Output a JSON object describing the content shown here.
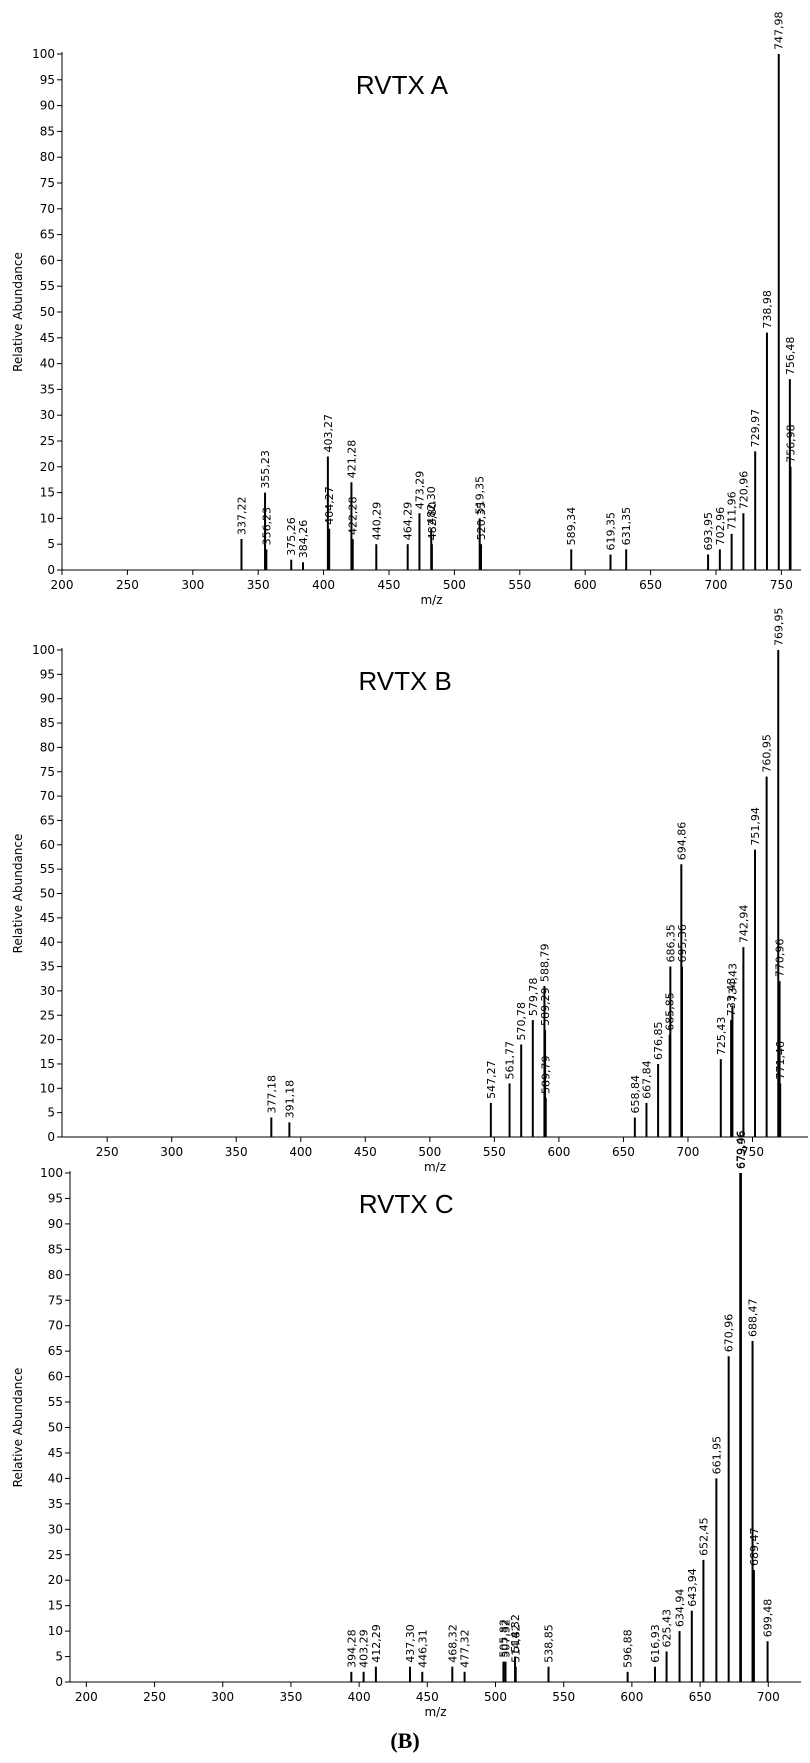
{
  "chart_data": [
    {
      "type": "spectrum",
      "title": "RVTX A",
      "x_label": "m/z",
      "y_label": "Relative Abundance",
      "color": "#000000",
      "xlim": [
        200,
        765
      ],
      "ylim": [
        0,
        100
      ],
      "xticks": [
        200,
        250,
        300,
        350,
        400,
        450,
        500,
        550,
        600,
        650,
        700,
        750
      ],
      "yticks": [
        0,
        5,
        10,
        15,
        20,
        25,
        30,
        35,
        40,
        45,
        50,
        55,
        60,
        65,
        70,
        75,
        80,
        85,
        90,
        95,
        100
      ],
      "x": [
        {
          "value": 337.22,
          "label": "337,22"
        },
        {
          "value": 355.23,
          "label": "355,23"
        },
        {
          "value": 356.23,
          "label": "356,23"
        },
        {
          "value": 375.26,
          "label": "375,26"
        },
        {
          "value": 384.26,
          "label": "384,26"
        },
        {
          "value": 403.27,
          "label": "403,27"
        },
        {
          "value": 404.27,
          "label": "404,27"
        },
        {
          "value": 421.28,
          "label": "421,28"
        },
        {
          "value": 422.28,
          "label": "422,28"
        },
        {
          "value": 440.29,
          "label": "440,29"
        },
        {
          "value": 464.29,
          "label": "464,29"
        },
        {
          "value": 473.29,
          "label": "473,29"
        },
        {
          "value": 482.3,
          "label": "482,30"
        },
        {
          "value": 482.8,
          "label": "482,80"
        },
        {
          "value": 519.35,
          "label": "519,35"
        },
        {
          "value": 520.35,
          "label": "520,35"
        },
        {
          "value": 589.34,
          "label": "589,34"
        },
        {
          "value": 619.35,
          "label": "619,35"
        },
        {
          "value": 631.35,
          "label": "631,35"
        },
        {
          "value": 693.95,
          "label": "693,95"
        },
        {
          "value": 702.96,
          "label": "702,96"
        },
        {
          "value": 711.96,
          "label": "711,96"
        },
        {
          "value": 720.96,
          "label": "720,96"
        },
        {
          "value": 729.97,
          "label": "729,97"
        },
        {
          "value": 738.98,
          "label": "738,98"
        },
        {
          "value": 747.98,
          "label": "747,98"
        },
        {
          "value": 756.48,
          "label": "756,48"
        },
        {
          "value": 756.98,
          "label": "756,98"
        }
      ],
      "values": [
        6,
        15,
        4,
        2,
        1.5,
        22,
        8,
        17,
        6,
        5,
        5,
        11,
        8,
        5,
        10,
        5,
        4,
        3,
        4,
        3,
        4,
        7,
        11,
        23,
        46,
        100,
        37,
        20
      ]
    },
    {
      "type": "spectrum",
      "title": "RVTX B",
      "x_label": "m/z",
      "y_label": "Relative Abundance",
      "color": "#000000",
      "xlim": [
        215,
        793
      ],
      "ylim": [
        0,
        100
      ],
      "xticks": [
        250,
        300,
        350,
        400,
        450,
        500,
        550,
        600,
        650,
        700,
        750
      ],
      "yticks": [
        0,
        5,
        10,
        15,
        20,
        25,
        30,
        35,
        40,
        45,
        50,
        55,
        60,
        65,
        70,
        75,
        80,
        85,
        90,
        95,
        100
      ],
      "x": [
        {
          "value": 377.18,
          "label": "377,18"
        },
        {
          "value": 391.18,
          "label": "391,18"
        },
        {
          "value": 547.27,
          "label": "547,27"
        },
        {
          "value": 561.77,
          "label": "561,77"
        },
        {
          "value": 570.78,
          "label": "570,78"
        },
        {
          "value": 579.78,
          "label": "579,78"
        },
        {
          "value": 588.79,
          "label": "588,79"
        },
        {
          "value": 589.29,
          "label": "589,29"
        },
        {
          "value": 589.79,
          "label": "589,79"
        },
        {
          "value": 658.84,
          "label": "658,84"
        },
        {
          "value": 667.84,
          "label": "667,84"
        },
        {
          "value": 676.85,
          "label": "676,85"
        },
        {
          "value": 685.85,
          "label": "685,85"
        },
        {
          "value": 686.35,
          "label": "686,35"
        },
        {
          "value": 694.86,
          "label": "694,86"
        },
        {
          "value": 695.36,
          "label": "695,36"
        },
        {
          "value": 725.43,
          "label": "725,43"
        },
        {
          "value": 733.43,
          "label": "733,43"
        },
        {
          "value": 734.43,
          "label": "734,43"
        },
        {
          "value": 742.94,
          "label": "742,94"
        },
        {
          "value": 751.94,
          "label": "751,94"
        },
        {
          "value": 760.95,
          "label": "760,95"
        },
        {
          "value": 769.95,
          "label": "769,95"
        },
        {
          "value": 770.96,
          "label": "770,96"
        },
        {
          "value": 771.46,
          "label": "771,46"
        }
      ],
      "values": [
        4,
        3,
        7,
        11,
        19,
        24,
        31,
        22,
        8,
        4,
        7,
        15,
        21,
        35,
        56,
        35,
        16,
        24,
        27,
        39,
        59,
        74,
        100,
        32,
        11
      ]
    },
    {
      "type": "spectrum",
      "title": "RVTX C",
      "x_label": "m/z",
      "y_label": "Relative Abundance",
      "color": "#000000",
      "xlim": [
        188,
        724
      ],
      "ylim": [
        0,
        100
      ],
      "xticks": [
        200,
        250,
        300,
        350,
        400,
        450,
        500,
        550,
        600,
        650,
        700
      ],
      "yticks": [
        0,
        5,
        10,
        15,
        20,
        25,
        30,
        35,
        40,
        45,
        50,
        55,
        60,
        65,
        70,
        75,
        80,
        85,
        90,
        95,
        100
      ],
      "x": [
        {
          "value": 394.28,
          "label": "394,28"
        },
        {
          "value": 403.29,
          "label": "403,29"
        },
        {
          "value": 412.29,
          "label": "412,29"
        },
        {
          "value": 437.3,
          "label": "437,30"
        },
        {
          "value": 446.31,
          "label": "446,31"
        },
        {
          "value": 468.32,
          "label": "468,32"
        },
        {
          "value": 477.32,
          "label": "477,32"
        },
        {
          "value": 505.82,
          "label": "505,82"
        },
        {
          "value": 507.32,
          "label": "507,32"
        },
        {
          "value": 514.32,
          "label": "514,32"
        },
        {
          "value": 514.82,
          "label": "514,82"
        },
        {
          "value": 538.85,
          "label": "538,85"
        },
        {
          "value": 596.88,
          "label": "596,88"
        },
        {
          "value": 616.93,
          "label": "616,93"
        },
        {
          "value": 625.43,
          "label": "625,43"
        },
        {
          "value": 634.94,
          "label": "634,94"
        },
        {
          "value": 643.94,
          "label": "643,94"
        },
        {
          "value": 652.45,
          "label": "652,45"
        },
        {
          "value": 661.95,
          "label": "661,95"
        },
        {
          "value": 670.96,
          "label": "670,96"
        },
        {
          "value": 679.46,
          "label": "679,46"
        },
        {
          "value": 679.96,
          "label": "679,96"
        },
        {
          "value": 688.47,
          "label": "688,47"
        },
        {
          "value": 689.47,
          "label": "689,47"
        },
        {
          "value": 699.48,
          "label": "699,48"
        }
      ],
      "values": [
        2,
        2,
        3,
        3,
        2,
        3,
        2,
        4,
        4,
        5,
        3,
        3,
        2,
        3,
        6,
        10,
        14,
        24,
        40,
        64,
        100,
        100,
        67,
        22,
        8
      ]
    }
  ],
  "caption": "(B)"
}
